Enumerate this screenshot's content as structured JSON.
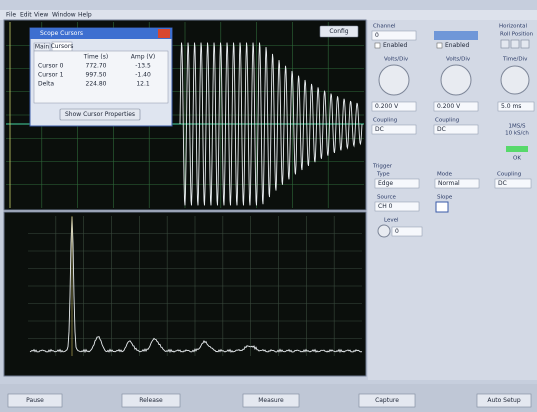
{
  "menu": [
    "File",
    "Edit",
    "View",
    "Window",
    "Help"
  ],
  "config_button": "Config",
  "cursor_window": {
    "title": "Scope Cursors",
    "tabs": [
      "Main",
      "Cursors"
    ],
    "columns": [
      "Time (s)",
      "Amp (V)"
    ],
    "rows": [
      [
        "Cursor 0",
        "772.70",
        "-13.5"
      ],
      [
        "Cursor 1",
        "997.50",
        "-1.40"
      ],
      [
        "Delta",
        "224.80",
        "12.1"
      ]
    ],
    "button": "Show Cursor Properties"
  },
  "channel_a": {
    "label": "Channel",
    "channel": "0",
    "enabled": "Enabled",
    "volts_label": "Volts/Div",
    "volts": "0.200 V",
    "coupling_label": "Coupling",
    "coupling": "DC"
  },
  "channel_b": {
    "enabled": "Enabled",
    "volts_label": "Volts/Div",
    "volts": "0.200 V",
    "coupling_label": "Coupling",
    "coupling": "DC"
  },
  "horizontal": {
    "label": "Horizontal",
    "roll": "Roll Position",
    "time_label": "Time/Div",
    "time": "5.0 ms",
    "status1": "1MS/S",
    "status2": "10 kS/ch",
    "status3": "OK"
  },
  "trigger": {
    "label": "Trigger",
    "type_label": "Type",
    "type": "Edge",
    "mode_label": "Mode",
    "mode": "Normal",
    "coupling_label": "Coupling",
    "coupling": "DC",
    "source_label": "Source",
    "source": "CH 0",
    "slope_label": "Slope",
    "level_label": "Level",
    "level": "0"
  },
  "buttons": [
    "Pause",
    "Release",
    "Measure",
    "Capture",
    "Auto Setup"
  ]
}
